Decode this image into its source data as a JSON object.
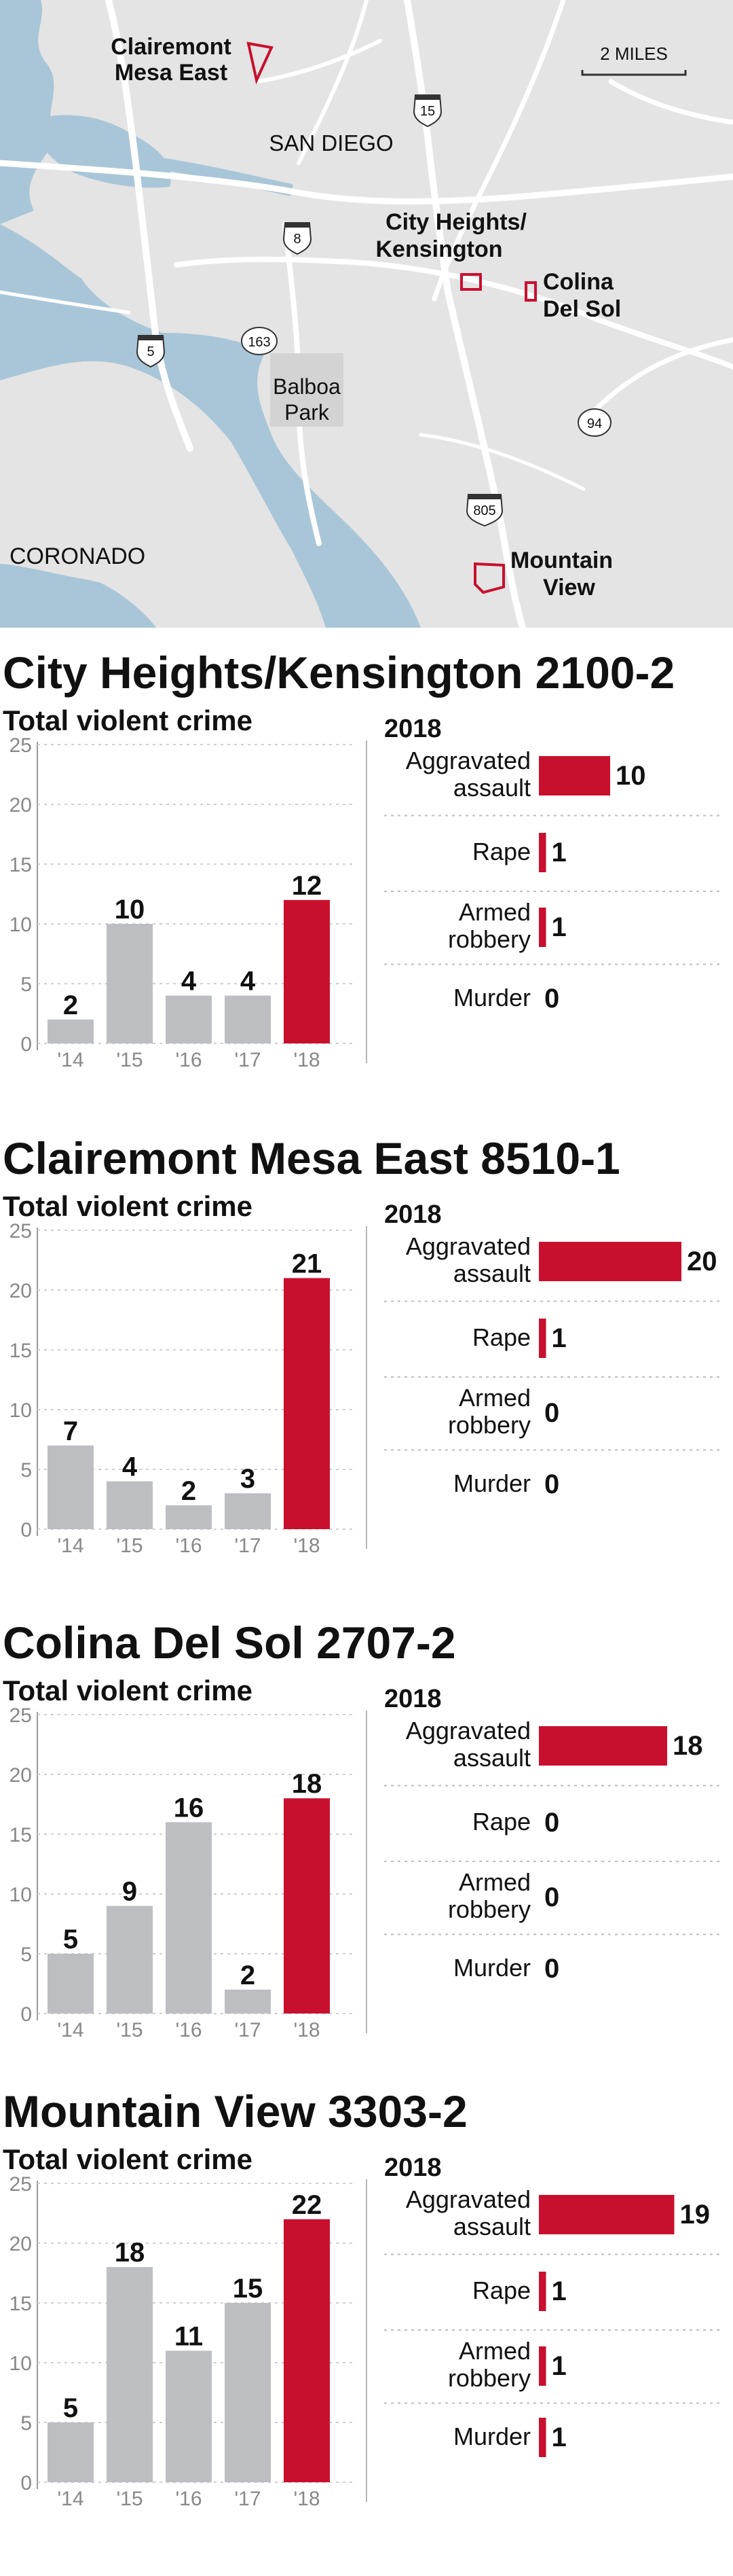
{
  "map": {
    "scale_label": "2 MILES",
    "labels": {
      "san_diego": "SAN DIEGO",
      "balboa": "Balboa",
      "park": "Park",
      "coronado": "CORONADO",
      "cm_line1": "Clairemont",
      "cm_line2": "Mesa East",
      "ch_line1": "City Heights/",
      "ch_line2": "Kensington",
      "cds_line1": "Colina",
      "cds_line2": "Del Sol",
      "mv_line1": "Mountain",
      "mv_line2": "View"
    },
    "highways": {
      "i15": "15",
      "i8": "8",
      "i5": "5",
      "sr163": "163",
      "sr94": "94",
      "i805": "805"
    },
    "colors": {
      "water": "#a9c6d9",
      "land": "#e4e4e4",
      "road": "#ffffff",
      "accent": "#c8102e"
    }
  },
  "chart_data": [
    {
      "type": "bar",
      "title": "City Heights/Kensington 2100-2",
      "subtitle": "Total violent crime",
      "categories": [
        "'14",
        "'15",
        "'16",
        "'17",
        "'18"
      ],
      "values": [
        2,
        10,
        4,
        4,
        12
      ],
      "ylim": [
        0,
        25
      ],
      "yticks": [
        "0",
        "5",
        "10",
        "15",
        "20",
        "25"
      ],
      "colors": {
        "past": "#bdbec2",
        "current": "#c8102e"
      },
      "breakdown": {
        "title": "2018",
        "items": [
          {
            "label1": "Aggravated",
            "label2": "assault",
            "value": 10
          },
          {
            "label1": "Rape",
            "label2": "",
            "value": 1
          },
          {
            "label1": "Armed",
            "label2": "robbery",
            "value": 1
          },
          {
            "label1": "Murder",
            "label2": "",
            "value": 0
          }
        ]
      }
    },
    {
      "type": "bar",
      "title": "Clairemont Mesa East 8510-1",
      "subtitle": "Total violent crime",
      "categories": [
        "'14",
        "'15",
        "'16",
        "'17",
        "'18"
      ],
      "values": [
        7,
        4,
        2,
        3,
        21
      ],
      "ylim": [
        0,
        25
      ],
      "yticks": [
        "0",
        "5",
        "10",
        "15",
        "20",
        "25"
      ],
      "colors": {
        "past": "#bdbec2",
        "current": "#c8102e"
      },
      "breakdown": {
        "title": "2018",
        "items": [
          {
            "label1": "Aggravated",
            "label2": "assault",
            "value": 20
          },
          {
            "label1": "Rape",
            "label2": "",
            "value": 1
          },
          {
            "label1": "Armed",
            "label2": "robbery",
            "value": 0
          },
          {
            "label1": "Murder",
            "label2": "",
            "value": 0
          }
        ]
      }
    },
    {
      "type": "bar",
      "title": "Colina Del Sol 2707-2",
      "subtitle": "Total violent crime",
      "categories": [
        "'14",
        "'15",
        "'16",
        "'17",
        "'18"
      ],
      "values": [
        5,
        9,
        16,
        2,
        18
      ],
      "ylim": [
        0,
        25
      ],
      "yticks": [
        "0",
        "5",
        "10",
        "15",
        "20",
        "25"
      ],
      "colors": {
        "past": "#bdbec2",
        "current": "#c8102e"
      },
      "breakdown": {
        "title": "2018",
        "items": [
          {
            "label1": "Aggravated",
            "label2": "assault",
            "value": 18
          },
          {
            "label1": "Rape",
            "label2": "",
            "value": 0
          },
          {
            "label1": "Armed",
            "label2": "robbery",
            "value": 0
          },
          {
            "label1": "Murder",
            "label2": "",
            "value": 0
          }
        ]
      }
    },
    {
      "type": "bar",
      "title": "Mountain View 3303-2",
      "subtitle": "Total violent crime",
      "categories": [
        "'14",
        "'15",
        "'16",
        "'17",
        "'18"
      ],
      "values": [
        5,
        18,
        11,
        15,
        22
      ],
      "ylim": [
        0,
        25
      ],
      "yticks": [
        "0",
        "5",
        "10",
        "15",
        "20",
        "25"
      ],
      "colors": {
        "past": "#bdbec2",
        "current": "#c8102e"
      },
      "breakdown": {
        "title": "2018",
        "items": [
          {
            "label1": "Aggravated",
            "label2": "assault",
            "value": 19
          },
          {
            "label1": "Rape",
            "label2": "",
            "value": 1
          },
          {
            "label1": "Armed",
            "label2": "robbery",
            "value": 1
          },
          {
            "label1": "Murder",
            "label2": "",
            "value": 1
          }
        ]
      }
    }
  ]
}
